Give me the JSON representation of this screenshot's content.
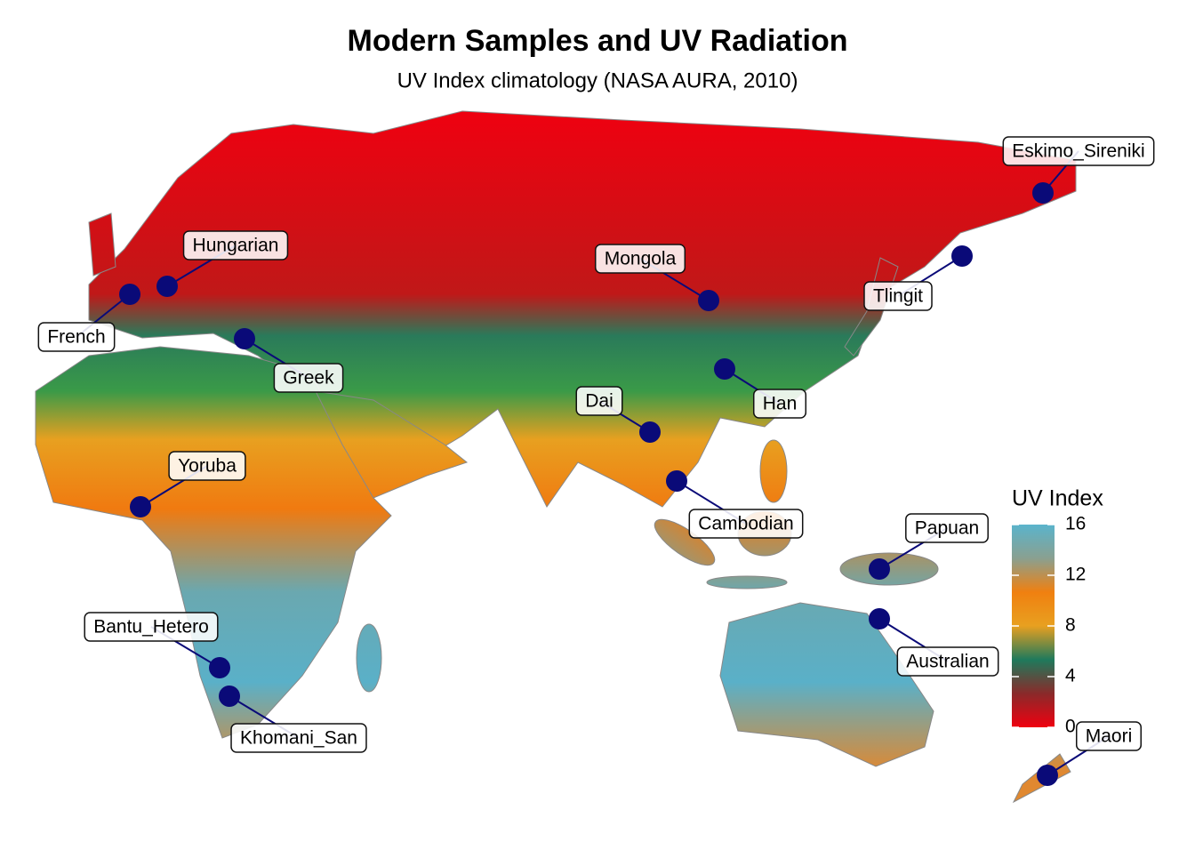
{
  "title": "Modern Samples and UV Radiation",
  "subtitle": "UV Index climatology (NASA AURA, 2010)",
  "legend": {
    "title": "UV Index",
    "range": [
      0,
      16
    ],
    "ticks": [
      0,
      4,
      8,
      12,
      16
    ],
    "colors": [
      "#f00010",
      "#8a2a2a",
      "#1f7a5c",
      "#e8a020",
      "#f08010",
      "#8aa090",
      "#5ab4cc"
    ]
  },
  "samples": [
    {
      "name": "Eskimo_Sireniki"
    },
    {
      "name": "Hungarian"
    },
    {
      "name": "French"
    },
    {
      "name": "Mongola"
    },
    {
      "name": "Tlingit"
    },
    {
      "name": "Greek"
    },
    {
      "name": "Han"
    },
    {
      "name": "Dai"
    },
    {
      "name": "Yoruba"
    },
    {
      "name": "Cambodian"
    },
    {
      "name": "Papuan"
    },
    {
      "name": "Australian"
    },
    {
      "name": "Bantu_Hetero"
    },
    {
      "name": "Khomani_San"
    },
    {
      "name": "Maori"
    }
  ],
  "point_color": "#0a0a78"
}
